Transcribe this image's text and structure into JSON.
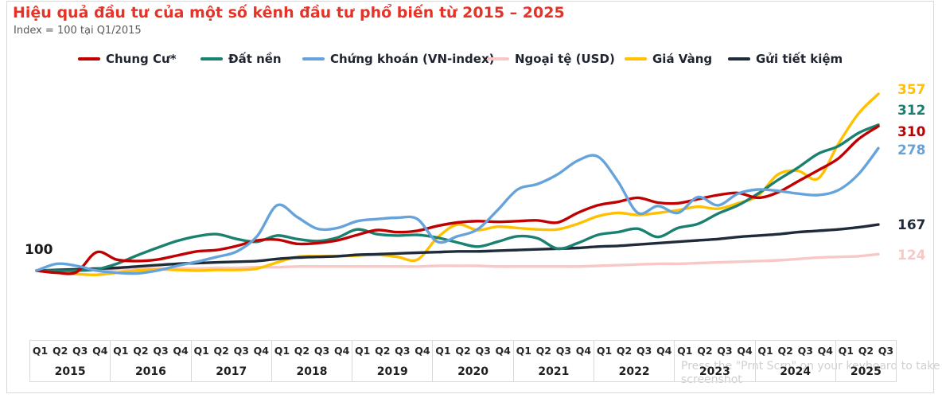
{
  "title": "Hiệu quả đầu tư của một số kênh đầu tư phổ biến từ 2015 – 2025",
  "subtitle": "Index = 100 tại Q1/2015",
  "watermark": "Press the \"Prnt Scrn\" on your keyboard to take a screenshot",
  "chart_data": {
    "type": "line",
    "grid": false,
    "legend_position": "top",
    "baseline": {
      "value": 100,
      "label": "100"
    },
    "ylim": [
      88,
      380
    ],
    "x": {
      "unit": "quarter",
      "start": "Q1 2015",
      "end": "Q3 2025",
      "years": [
        {
          "label": "2015",
          "quarters": [
            "Q1",
            "Q2",
            "Q3",
            "Q4"
          ]
        },
        {
          "label": "2016",
          "quarters": [
            "Q1",
            "Q2",
            "Q3",
            "Q4"
          ]
        },
        {
          "label": "2017",
          "quarters": [
            "Q1",
            "Q2",
            "Q3",
            "Q4"
          ]
        },
        {
          "label": "2018",
          "quarters": [
            "Q1",
            "Q2",
            "Q3",
            "Q4"
          ]
        },
        {
          "label": "2019",
          "quarters": [
            "Q1",
            "Q2",
            "Q3",
            "Q4"
          ]
        },
        {
          "label": "2020",
          "quarters": [
            "Q1",
            "Q2",
            "Q3",
            "Q4"
          ]
        },
        {
          "label": "2021",
          "quarters": [
            "Q1",
            "Q2",
            "Q3",
            "Q4"
          ]
        },
        {
          "label": "2022",
          "quarters": [
            "Q1",
            "Q2",
            "Q3",
            "Q4"
          ]
        },
        {
          "label": "2023",
          "quarters": [
            "Q1",
            "Q2",
            "Q3",
            "Q4"
          ]
        },
        {
          "label": "2024",
          "quarters": [
            "Q1",
            "Q2",
            "Q3",
            "Q4"
          ]
        },
        {
          "label": "2025",
          "quarters": [
            "Q1",
            "Q2",
            "Q3"
          ]
        }
      ]
    },
    "series": [
      {
        "id": "chung-cu",
        "name": "Chung Cư*",
        "color": "#c00000",
        "end_value": 310,
        "values": [
          100,
          97,
          98,
          127,
          116,
          114,
          116,
          122,
          128,
          130,
          136,
          144,
          145,
          139,
          140,
          144,
          152,
          159,
          156,
          158,
          165,
          170,
          172,
          171,
          172,
          173,
          170,
          184,
          195,
          200,
          206,
          199,
          198,
          204,
          210,
          213,
          206,
          214,
          230,
          246,
          263,
          291,
          310
        ]
      },
      {
        "id": "dat-nen",
        "name": "Đất nền",
        "color": "#1a8070",
        "end_value": 312,
        "values": [
          100,
          100,
          100,
          102,
          110,
          122,
          133,
          143,
          150,
          153,
          146,
          142,
          151,
          146,
          143,
          148,
          160,
          153,
          151,
          152,
          148,
          141,
          135,
          142,
          150,
          147,
          132,
          140,
          152,
          156,
          161,
          149,
          162,
          168,
          183,
          195,
          212,
          232,
          250,
          270,
          281,
          300,
          312
        ]
      },
      {
        "id": "chung-khoan",
        "name": "Chứng khoán (VN-index)",
        "color": "#67a3db",
        "end_value": 278,
        "values": [
          100,
          110,
          107,
          100,
          97,
          96,
          100,
          107,
          113,
          120,
          128,
          150,
          195,
          178,
          161,
          162,
          172,
          175,
          177,
          175,
          142,
          150,
          160,
          188,
          218,
          226,
          240,
          260,
          266,
          230,
          184,
          194,
          184,
          207,
          195,
          212,
          218,
          216,
          212,
          210,
          217,
          240,
          278
        ]
      },
      {
        "id": "ngoai-te",
        "name": "Ngoại tệ (USD)",
        "color": "#f8c8c6",
        "end_value": 124,
        "values": [
          100,
          100,
          101,
          101,
          102,
          102,
          103,
          103,
          103,
          104,
          104,
          105,
          105,
          106,
          106,
          106,
          106,
          106,
          106,
          106,
          107,
          107,
          107,
          106,
          106,
          106,
          106,
          106,
          107,
          108,
          109,
          110,
          110,
          111,
          112,
          113,
          114,
          115,
          117,
          119,
          120,
          121,
          124
        ]
      },
      {
        "id": "gia-vang",
        "name": "Giá Vàng",
        "color": "#ffc000",
        "end_value": 357,
        "values": [
          100,
          97,
          95,
          94,
          97,
          100,
          102,
          101,
          100,
          101,
          101,
          103,
          112,
          120,
          121,
          121,
          122,
          123,
          120,
          116,
          148,
          167,
          159,
          164,
          162,
          160,
          160,
          168,
          179,
          184,
          181,
          184,
          188,
          193,
          190,
          198,
          209,
          240,
          245,
          234,
          284,
          328,
          357
        ]
      },
      {
        "id": "gui-tiet-kiem",
        "name": "Gửi tiết kiệm",
        "color": "#1f2b3a",
        "end_value": 167,
        "values": [
          100,
          101,
          102,
          103,
          104,
          106,
          108,
          110,
          111,
          112,
          113,
          114,
          117,
          119,
          120,
          121,
          123,
          124,
          125,
          126,
          127,
          128,
          128,
          129,
          130,
          131,
          132,
          133,
          135,
          136,
          138,
          140,
          142,
          144,
          146,
          149,
          151,
          153,
          156,
          158,
          160,
          163,
          167
        ]
      }
    ]
  }
}
